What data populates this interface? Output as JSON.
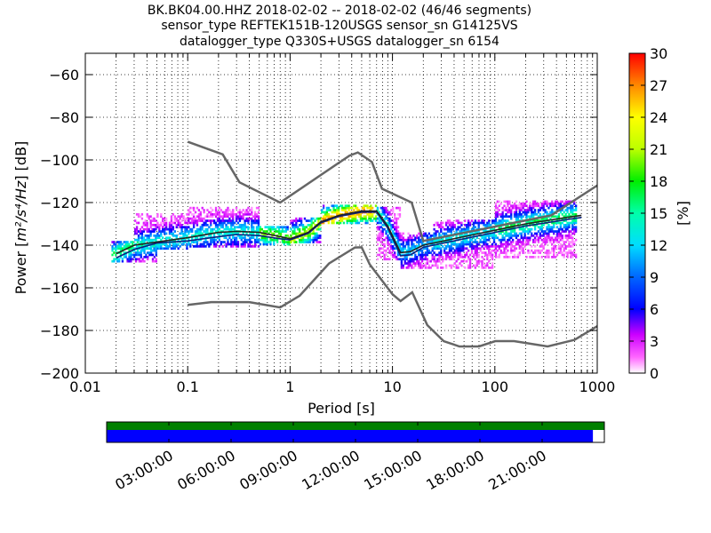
{
  "chart_data": {
    "type": "heatmap",
    "title_lines": [
      "BK.BK04.00.HHZ   2018-02-02 -- 2018-02-02  (46/46 segments)",
      "sensor_type REFTEK151B-120USGS sensor_sn G14125VS",
      "datalogger_type Q330S+USGS datalogger_sn 6154"
    ],
    "xlabel": "Period [s]",
    "ylabel_prefix": "Power [",
    "ylabel_math": "m²/s⁴/Hz",
    "ylabel_suffix": "] [dB]",
    "x_scale": "log",
    "xlim": [
      0.01,
      1000
    ],
    "ylim": [
      -200,
      -50
    ],
    "x_ticks": [
      {
        "value": 0.01,
        "label": "0.01"
      },
      {
        "value": 0.1,
        "label": "0.1"
      },
      {
        "value": 1,
        "label": "1"
      },
      {
        "value": 10,
        "label": "10"
      },
      {
        "value": 100,
        "label": "100"
      },
      {
        "value": 1000,
        "label": "1000"
      }
    ],
    "y_ticks": [
      {
        "value": -60,
        "label": "−60"
      },
      {
        "value": -80,
        "label": "−80"
      },
      {
        "value": -100,
        "label": "−100"
      },
      {
        "value": -120,
        "label": "−120"
      },
      {
        "value": -140,
        "label": "−140"
      },
      {
        "value": -160,
        "label": "−160"
      },
      {
        "value": -180,
        "label": "−180"
      },
      {
        "value": -200,
        "label": "−200"
      }
    ],
    "grid": "dotted",
    "colorbar": {
      "label": "[%]",
      "range": [
        0,
        30
      ],
      "ticks": [
        "0",
        "3",
        "6",
        "9",
        "12",
        "15",
        "18",
        "21",
        "24",
        "27",
        "30"
      ]
    },
    "reference_curves": {
      "high_noise_model": [
        [
          0.1,
          -91.5
        ],
        [
          0.22,
          -97.4
        ],
        [
          0.32,
          -110.5
        ],
        [
          0.8,
          -120
        ],
        [
          3.8,
          -98
        ],
        [
          4.6,
          -96.5
        ],
        [
          6.3,
          -101
        ],
        [
          7.9,
          -113.5
        ],
        [
          15.4,
          -120
        ],
        [
          20,
          -138
        ],
        [
          354.8,
          -126
        ],
        [
          1000,
          -112
        ]
      ],
      "low_noise_model": [
        [
          0.1,
          -168
        ],
        [
          0.17,
          -166.7
        ],
        [
          0.4,
          -166.7
        ],
        [
          0.8,
          -169.2
        ],
        [
          1.24,
          -163.7
        ],
        [
          2.4,
          -148.6
        ],
        [
          4.3,
          -141.1
        ],
        [
          5,
          -141
        ],
        [
          6,
          -149
        ],
        [
          10,
          -163
        ],
        [
          12,
          -166.2
        ],
        [
          15.6,
          -162.1
        ],
        [
          21.9,
          -177.5
        ],
        [
          31.6,
          -185
        ],
        [
          45,
          -187.5
        ],
        [
          70,
          -187.5
        ],
        [
          101,
          -185
        ],
        [
          154,
          -185
        ],
        [
          328,
          -187.5
        ],
        [
          600,
          -184.4
        ],
        [
          1000,
          -178
        ]
      ],
      "median": [
        [
          0.02,
          -144
        ],
        [
          0.03,
          -140
        ],
        [
          0.05,
          -138.5
        ],
        [
          0.1,
          -136.5
        ],
        [
          0.2,
          -134
        ],
        [
          0.3,
          -133.5
        ],
        [
          0.5,
          -134
        ],
        [
          0.8,
          -136
        ],
        [
          1,
          -137
        ],
        [
          1.5,
          -134
        ],
        [
          2,
          -129
        ],
        [
          3,
          -126
        ],
        [
          5,
          -124
        ],
        [
          7,
          -124
        ],
        [
          9,
          -131
        ],
        [
          12,
          -143.5
        ],
        [
          15,
          -143
        ],
        [
          20,
          -140
        ],
        [
          50,
          -136
        ],
        [
          100,
          -133
        ],
        [
          200,
          -130
        ],
        [
          500,
          -127
        ],
        [
          700,
          -126
        ]
      ],
      "mode": [
        [
          0.02,
          -146
        ],
        [
          0.03,
          -142
        ],
        [
          0.05,
          -139
        ],
        [
          0.1,
          -138
        ],
        [
          0.2,
          -136
        ],
        [
          0.3,
          -135
        ],
        [
          0.5,
          -135.5
        ],
        [
          0.8,
          -137
        ],
        [
          1,
          -137.5
        ],
        [
          1.5,
          -134.5
        ],
        [
          2,
          -129.5
        ],
        [
          3,
          -126.5
        ],
        [
          5,
          -124.5
        ],
        [
          7,
          -124.5
        ],
        [
          9,
          -132
        ],
        [
          12,
          -145
        ],
        [
          15,
          -144.5
        ],
        [
          20,
          -141
        ],
        [
          50,
          -137
        ],
        [
          100,
          -134
        ],
        [
          200,
          -131
        ],
        [
          500,
          -128
        ],
        [
          700,
          -127
        ]
      ]
    },
    "heatmap_bands": [
      {
        "from": 0.018,
        "to": 0.05,
        "y_min": -148,
        "y_max": -138,
        "peak": 15
      },
      {
        "from": 0.03,
        "to": 0.1,
        "y_min": -142,
        "y_max": -125,
        "peak": 12
      },
      {
        "from": 0.1,
        "to": 0.5,
        "y_min": -141,
        "y_max": -122,
        "peak": 12
      },
      {
        "from": 0.5,
        "to": 1.0,
        "y_min": -140,
        "y_max": -131,
        "peak": 18
      },
      {
        "from": 1.0,
        "to": 2.0,
        "y_min": -139,
        "y_max": -127,
        "peak": 20
      },
      {
        "from": 2.0,
        "to": 7.0,
        "y_min": -130,
        "y_max": -121,
        "peak": 25
      },
      {
        "from": 7.0,
        "to": 12.0,
        "y_min": -147,
        "y_max": -122,
        "peak": 12
      },
      {
        "from": 12.0,
        "to": 25.0,
        "y_min": -151,
        "y_max": -134,
        "peak": 10
      },
      {
        "from": 25.0,
        "to": 100.0,
        "y_min": -151,
        "y_max": -128,
        "peak": 12
      },
      {
        "from": 100.0,
        "to": 630.0,
        "y_min": -146,
        "y_max": -119,
        "peak": 15
      }
    ]
  },
  "timeline": {
    "tick_labels": [
      "03:00:00",
      "06:00:00",
      "09:00:00",
      "12:00:00",
      "15:00:00",
      "18:00:00",
      "21:00:00"
    ],
    "bars": [
      {
        "name": "data-available",
        "color": "#008000",
        "coverage": 1.0
      },
      {
        "name": "psd-segments",
        "color": "#0000ff",
        "coverage": 0.977
      }
    ]
  }
}
